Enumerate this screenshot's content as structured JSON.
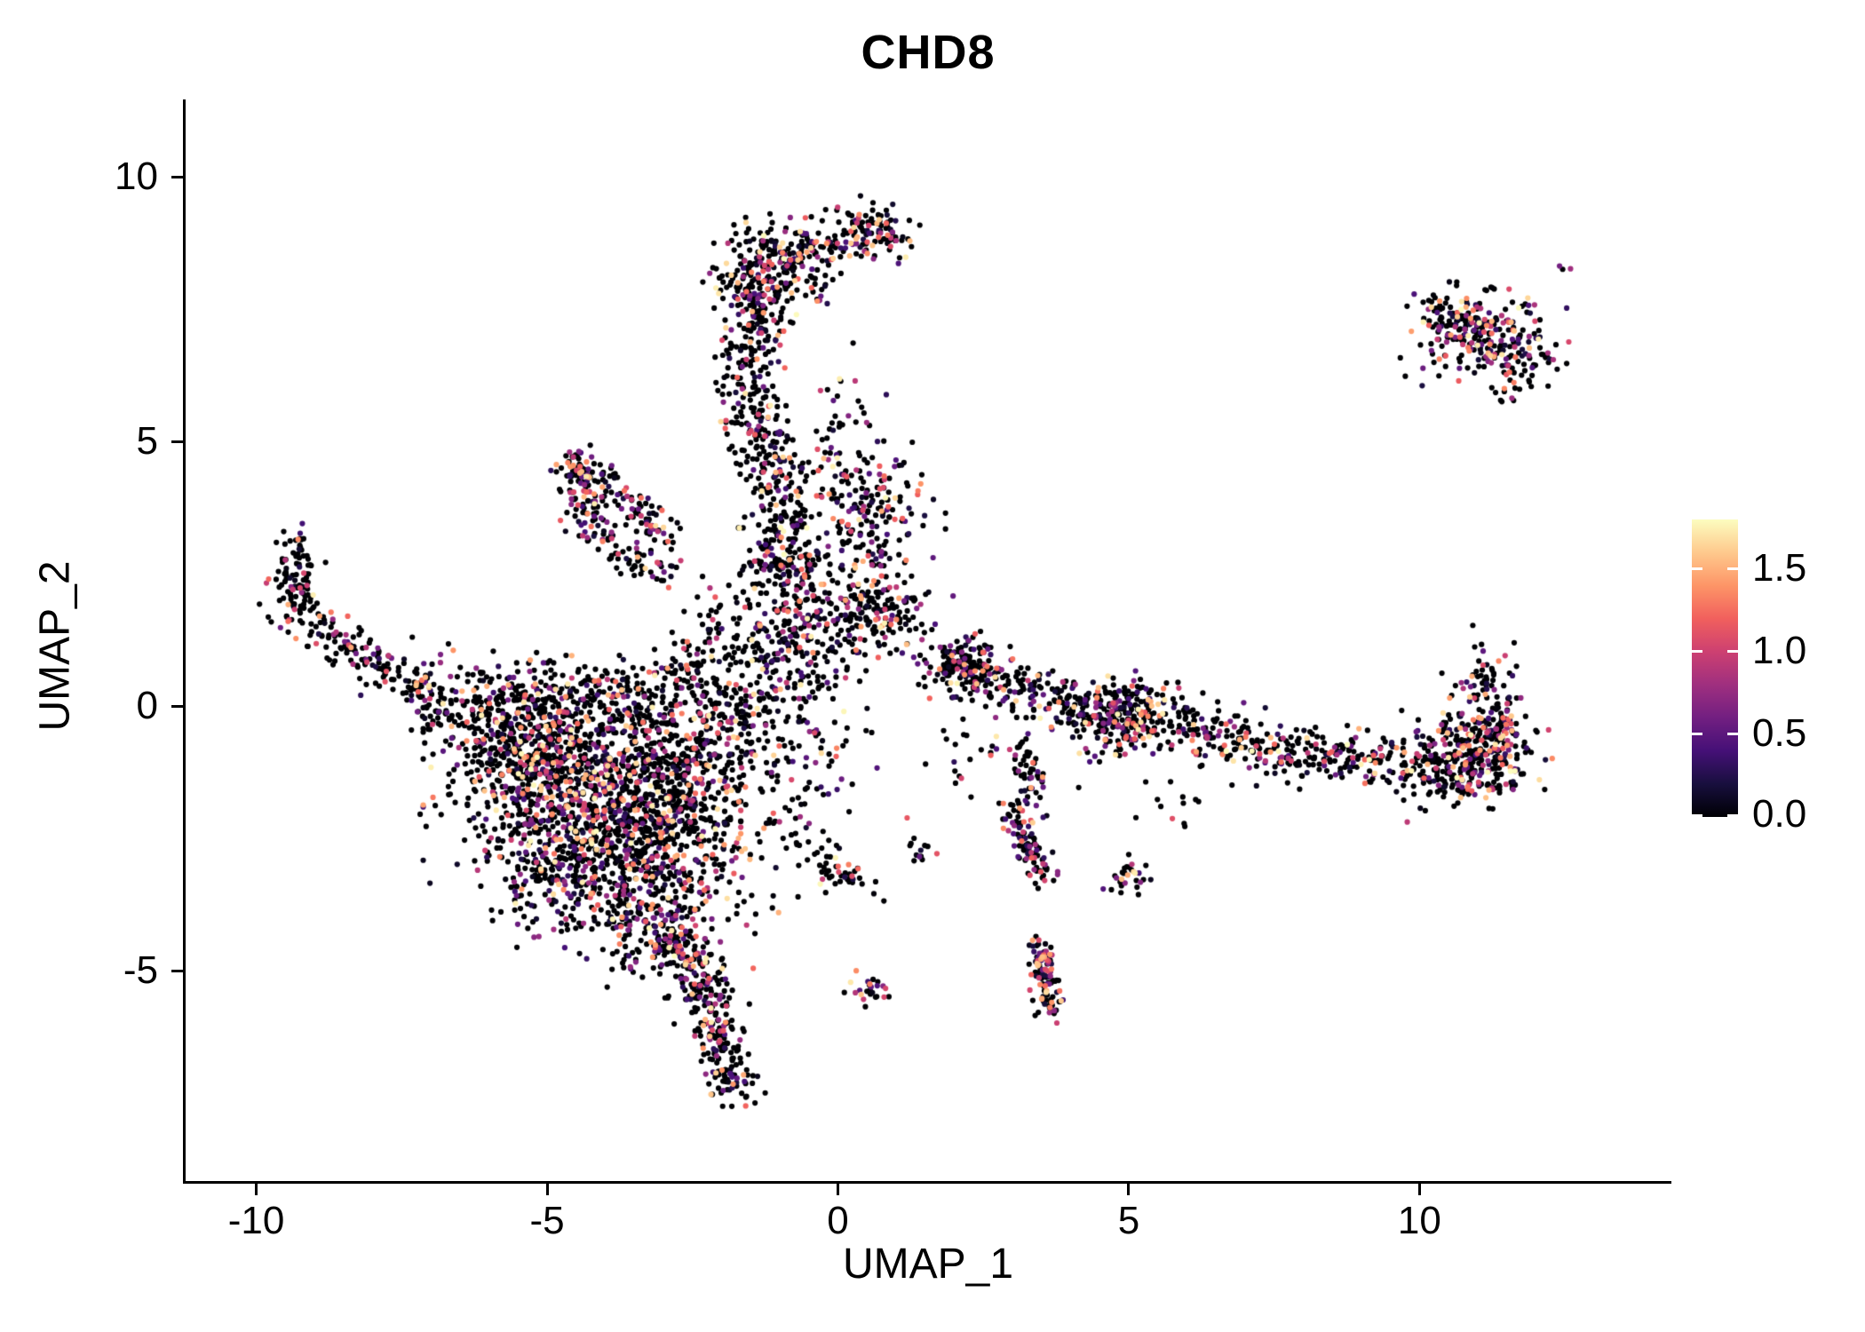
{
  "chart_data": {
    "type": "scatter",
    "title": "CHD8",
    "xlabel": "UMAP_1",
    "ylabel": "UMAP_2",
    "x_ticks": [
      -10,
      -5,
      0,
      5,
      10
    ],
    "y_ticks": [
      10,
      5,
      0,
      -5
    ],
    "xlim": [
      -11.2,
      14.3
    ],
    "ylim": [
      -8.96,
      11.34
    ],
    "grid": false,
    "legend_position": "right",
    "point_radius": 3.1,
    "seed": 42,
    "value_skew": 1.35,
    "zero_color": "#000004",
    "colormap": {
      "name": "magma",
      "stops": [
        "#000004",
        "#180f3e",
        "#451077",
        "#721f81",
        "#9f2f7f",
        "#cd4071",
        "#f1605d",
        "#fd9567",
        "#fec98d",
        "#fcfdbf"
      ]
    },
    "color_scale": {
      "min": 0.0,
      "max": 1.8,
      "legend_ticks": [
        1.5,
        1.0,
        0.5,
        0.0
      ]
    },
    "clusters": [
      {
        "type": "blob",
        "cx": -1.15,
        "cy": 8.25,
        "sx": 0.5,
        "sy": 0.45,
        "n": 270,
        "p": 0.35
      },
      {
        "type": "blob",
        "cx": 0.55,
        "cy": 8.95,
        "sx": 0.33,
        "sy": 0.27,
        "n": 110,
        "p": 0.4
      },
      {
        "type": "path",
        "pts": [
          [
            -0.55,
            8.6
          ],
          [
            0.1,
            8.85
          ]
        ],
        "w": 0.18,
        "n": 40,
        "p": 0.35
      },
      {
        "type": "path",
        "pts": [
          [
            -1.25,
            7.7
          ],
          [
            -1.55,
            6.4
          ],
          [
            -1.35,
            5.2
          ],
          [
            -0.95,
            4.1
          ],
          [
            -0.8,
            3.1
          ],
          [
            -0.85,
            2.55
          ]
        ],
        "w": 0.27,
        "n": 430,
        "p": 0.33
      },
      {
        "type": "blob",
        "cx": 0.0,
        "cy": 4.95,
        "sx": 0.35,
        "sy": 0.75,
        "n": 45,
        "p": 0.3
      },
      {
        "type": "blob",
        "cx": 0.55,
        "cy": 3.85,
        "sx": 0.5,
        "sy": 0.45,
        "n": 150,
        "p": 0.45
      },
      {
        "type": "blob",
        "cx": 0.4,
        "cy": 2.9,
        "sx": 0.3,
        "sy": 0.3,
        "n": 35,
        "p": 0.35
      },
      {
        "type": "path",
        "pts": [
          [
            -4.55,
            4.6
          ],
          [
            -4.35,
            3.5
          ],
          [
            -3.8,
            2.9
          ],
          [
            -3.0,
            2.55
          ]
        ],
        "w": 0.17,
        "n": 130,
        "p": 0.45
      },
      {
        "type": "path",
        "pts": [
          [
            -4.45,
            4.55
          ],
          [
            -3.75,
            4.0
          ],
          [
            -3.15,
            3.5
          ],
          [
            -2.85,
            2.95
          ]
        ],
        "w": 0.17,
        "n": 110,
        "p": 0.45
      },
      {
        "type": "blob",
        "cx": -4.45,
        "cy": 4.5,
        "sx": 0.15,
        "sy": 0.15,
        "n": 30,
        "p": 0.45
      },
      {
        "type": "path",
        "pts": [
          [
            -9.3,
            3.2
          ],
          [
            -9.45,
            2.3
          ],
          [
            -9.1,
            1.6
          ],
          [
            -8.4,
            1.15
          ],
          [
            -7.7,
            0.7
          ],
          [
            -7.05,
            0.2
          ],
          [
            -6.55,
            -0.3
          ]
        ],
        "w": 0.22,
        "n": 300,
        "p": 0.3
      },
      {
        "type": "blob",
        "cx": -6.1,
        "cy": 0.5,
        "sx": 0.45,
        "sy": 0.4,
        "n": 30,
        "p": 0.3
      },
      {
        "type": "blob",
        "cx": -4.4,
        "cy": -1.5,
        "sx": 1.05,
        "sy": 0.95,
        "n": 950,
        "p": 0.42
      },
      {
        "type": "blob",
        "cx": -3.1,
        "cy": -2.6,
        "sx": 0.8,
        "sy": 0.9,
        "n": 520,
        "p": 0.4
      },
      {
        "type": "blob",
        "cx": -5.4,
        "cy": -0.6,
        "sx": 0.75,
        "sy": 0.55,
        "n": 300,
        "p": 0.32
      },
      {
        "type": "blob",
        "cx": -2.6,
        "cy": -1.2,
        "sx": 0.6,
        "sy": 0.8,
        "n": 260,
        "p": 0.38
      },
      {
        "type": "path",
        "pts": [
          [
            -6.3,
            -0.2
          ],
          [
            -5.2,
            0.1
          ],
          [
            -4.2,
            0.3
          ],
          [
            -3.3,
            0.2
          ],
          [
            -2.6,
            0.6
          ],
          [
            -2.2,
            1.1
          ]
        ],
        "w": 0.3,
        "n": 260,
        "p": 0.3
      },
      {
        "type": "blob",
        "cx": -4.9,
        "cy": -3.2,
        "sx": 0.55,
        "sy": 0.6,
        "n": 180,
        "p": 0.35
      },
      {
        "type": "blob",
        "cx": -3.3,
        "cy": -4.2,
        "sx": 0.5,
        "sy": 0.5,
        "n": 150,
        "p": 0.35
      },
      {
        "type": "path",
        "pts": [
          [
            -2.9,
            -4.4
          ],
          [
            -2.4,
            -5.0
          ],
          [
            -2.1,
            -5.8
          ],
          [
            -1.95,
            -6.6
          ],
          [
            -1.8,
            -7.3
          ]
        ],
        "w": 0.22,
        "n": 300,
        "p": 0.35
      },
      {
        "type": "blob",
        "cx": -0.9,
        "cy": 1.3,
        "sx": 0.75,
        "sy": 0.8,
        "n": 300,
        "p": 0.35
      },
      {
        "type": "blob",
        "cx": 0.55,
        "cy": 1.8,
        "sx": 0.55,
        "sy": 0.42,
        "n": 170,
        "p": 0.4
      },
      {
        "type": "blob",
        "cx": -0.9,
        "cy": 2.6,
        "sx": 0.5,
        "sy": 0.5,
        "n": 70,
        "p": 0.3
      },
      {
        "type": "blob",
        "cx": -1.55,
        "cy": -0.1,
        "sx": 0.5,
        "sy": 0.6,
        "n": 140,
        "p": 0.35
      },
      {
        "type": "blob",
        "cx": -0.5,
        "cy": -1.6,
        "sx": 0.65,
        "sy": 0.8,
        "n": 80,
        "p": 0.3
      },
      {
        "type": "path",
        "pts": [
          [
            1.75,
            0.95
          ],
          [
            2.3,
            0.75
          ],
          [
            2.9,
            0.45
          ],
          [
            3.6,
            0.2
          ],
          [
            4.3,
            -0.1
          ],
          [
            5.0,
            -0.15
          ],
          [
            5.8,
            -0.4
          ],
          [
            6.6,
            -0.6
          ],
          [
            7.4,
            -0.75
          ],
          [
            8.2,
            -0.85
          ],
          [
            9.0,
            -1.0
          ],
          [
            9.8,
            -1.15
          ],
          [
            10.6,
            -1.3
          ],
          [
            11.3,
            -1.1
          ]
        ],
        "w": 0.28,
        "n": 760,
        "p": 0.35
      },
      {
        "type": "blob",
        "cx": 2.1,
        "cy": 0.72,
        "sx": 0.28,
        "sy": 0.28,
        "n": 110,
        "p": 0.4
      },
      {
        "type": "blob",
        "cx": 4.85,
        "cy": -0.18,
        "sx": 0.45,
        "sy": 0.33,
        "n": 140,
        "p": 0.35
      },
      {
        "type": "blob",
        "cx": 10.9,
        "cy": -0.9,
        "sx": 0.55,
        "sy": 0.5,
        "n": 230,
        "p": 0.4
      },
      {
        "type": "blob",
        "cx": 11.35,
        "cy": -0.45,
        "sx": 0.25,
        "sy": 0.4,
        "n": 90,
        "p": 0.45
      },
      {
        "type": "blob",
        "cx": 11.1,
        "cy": 0.55,
        "sx": 0.28,
        "sy": 0.38,
        "n": 45,
        "p": 0.45
      },
      {
        "type": "path",
        "pts": [
          [
            3.2,
            -0.75
          ],
          [
            3.35,
            -1.35
          ],
          [
            3.3,
            -1.85
          ]
        ],
        "w": 0.15,
        "n": 55,
        "p": 0.35
      },
      {
        "type": "path",
        "pts": [
          [
            2.95,
            -1.95
          ],
          [
            3.2,
            -2.45
          ],
          [
            3.5,
            -2.95
          ],
          [
            3.65,
            -3.4
          ]
        ],
        "w": 0.14,
        "n": 85,
        "p": 0.45
      },
      {
        "type": "path",
        "pts": [
          [
            3.45,
            -4.55
          ],
          [
            3.55,
            -5.05
          ],
          [
            3.65,
            -5.45
          ],
          [
            3.6,
            -5.8
          ]
        ],
        "w": 0.13,
        "n": 110,
        "p": 0.55
      },
      {
        "type": "blob",
        "cx": 0.55,
        "cy": -5.35,
        "sx": 0.2,
        "sy": 0.14,
        "n": 25,
        "p": 0.5
      },
      {
        "type": "blob",
        "cx": 4.95,
        "cy": -3.2,
        "sx": 0.18,
        "sy": 0.18,
        "n": 30,
        "p": 0.45
      },
      {
        "type": "path",
        "pts": [
          [
            -0.6,
            -2.75
          ],
          [
            0.0,
            -3.1
          ],
          [
            0.6,
            -3.45
          ]
        ],
        "w": 0.18,
        "n": 45,
        "p": 0.3
      },
      {
        "type": "blob",
        "cx": 1.5,
        "cy": -2.7,
        "sx": 0.14,
        "sy": 0.12,
        "n": 12,
        "p": 0.3
      },
      {
        "type": "blob",
        "cx": 2.35,
        "cy": -0.95,
        "sx": 0.5,
        "sy": 0.45,
        "n": 25,
        "p": 0.3
      },
      {
        "type": "blob",
        "cx": 5.7,
        "cy": -1.8,
        "sx": 0.6,
        "sy": 0.4,
        "n": 14,
        "p": 0.3
      },
      {
        "type": "blob",
        "cx": 11.1,
        "cy": 7.0,
        "sx": 0.55,
        "sy": 0.45,
        "n": 200,
        "p": 0.5
      },
      {
        "type": "path",
        "pts": [
          [
            10.05,
            7.65
          ],
          [
            10.6,
            7.4
          ],
          [
            11.15,
            7.15
          ]
        ],
        "w": 0.18,
        "n": 60,
        "p": 0.5
      },
      {
        "type": "blob",
        "cx": 11.8,
        "cy": 6.45,
        "sx": 0.3,
        "sy": 0.28,
        "n": 55,
        "p": 0.5
      },
      {
        "type": "blob",
        "cx": 12.45,
        "cy": 8.3,
        "sx": 0.06,
        "sy": 0.05,
        "n": 3,
        "p": 0.6
      },
      {
        "type": "blob",
        "cx": -6.75,
        "cy": 1.15,
        "sx": 0.1,
        "sy": 0.08,
        "n": 3,
        "p": 0.3
      }
    ]
  }
}
